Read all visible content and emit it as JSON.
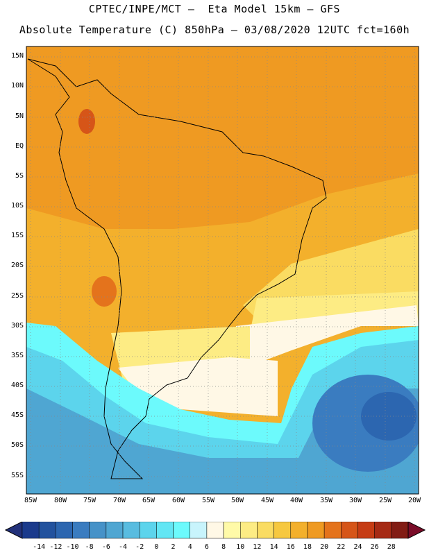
{
  "header": {
    "line1": "CPTEC/INPE/MCT –  Eta Model 15km – GFS",
    "line2": "Absolute Temperature (C) 850hPa – 03/08/2020 12UTC fct=160h"
  },
  "map": {
    "lat_labels": [
      "15N",
      "10N",
      "5N",
      "EQ",
      "5S",
      "10S",
      "15S",
      "20S",
      "25S",
      "30S",
      "35S",
      "40S",
      "45S",
      "50S",
      "55S"
    ],
    "lon_labels": [
      "85W",
      "80W",
      "75W",
      "70W",
      "65W",
      "60W",
      "55W",
      "50W",
      "45W",
      "40W",
      "35W",
      "30W",
      "25W",
      "20W"
    ]
  },
  "colorbar": {
    "labels": [
      "-14",
      "-12",
      "-10",
      "-8",
      "-6",
      "-4",
      "-2",
      "0",
      "2",
      "4",
      "6",
      "8",
      "10",
      "12",
      "14",
      "16",
      "18",
      "20",
      "22",
      "24",
      "26",
      "28"
    ],
    "colors": [
      "#1a3a8c",
      "#22529e",
      "#2c66b0",
      "#3a7cc0",
      "#4692c8",
      "#4fa6d2",
      "#58bce0",
      "#5cd4ec",
      "#62e6f4",
      "#6cfafc",
      "#c8f4fc",
      "#fff8e6",
      "#fffaa8",
      "#fdec84",
      "#fadc62",
      "#f6c840",
      "#f3b02c",
      "#ef9a22",
      "#e4731c",
      "#d65518",
      "#c63c14",
      "#a62a14",
      "#821c14"
    ],
    "low_arrow_color": "#22317a",
    "high_arrow_color": "#7a0c28"
  }
}
